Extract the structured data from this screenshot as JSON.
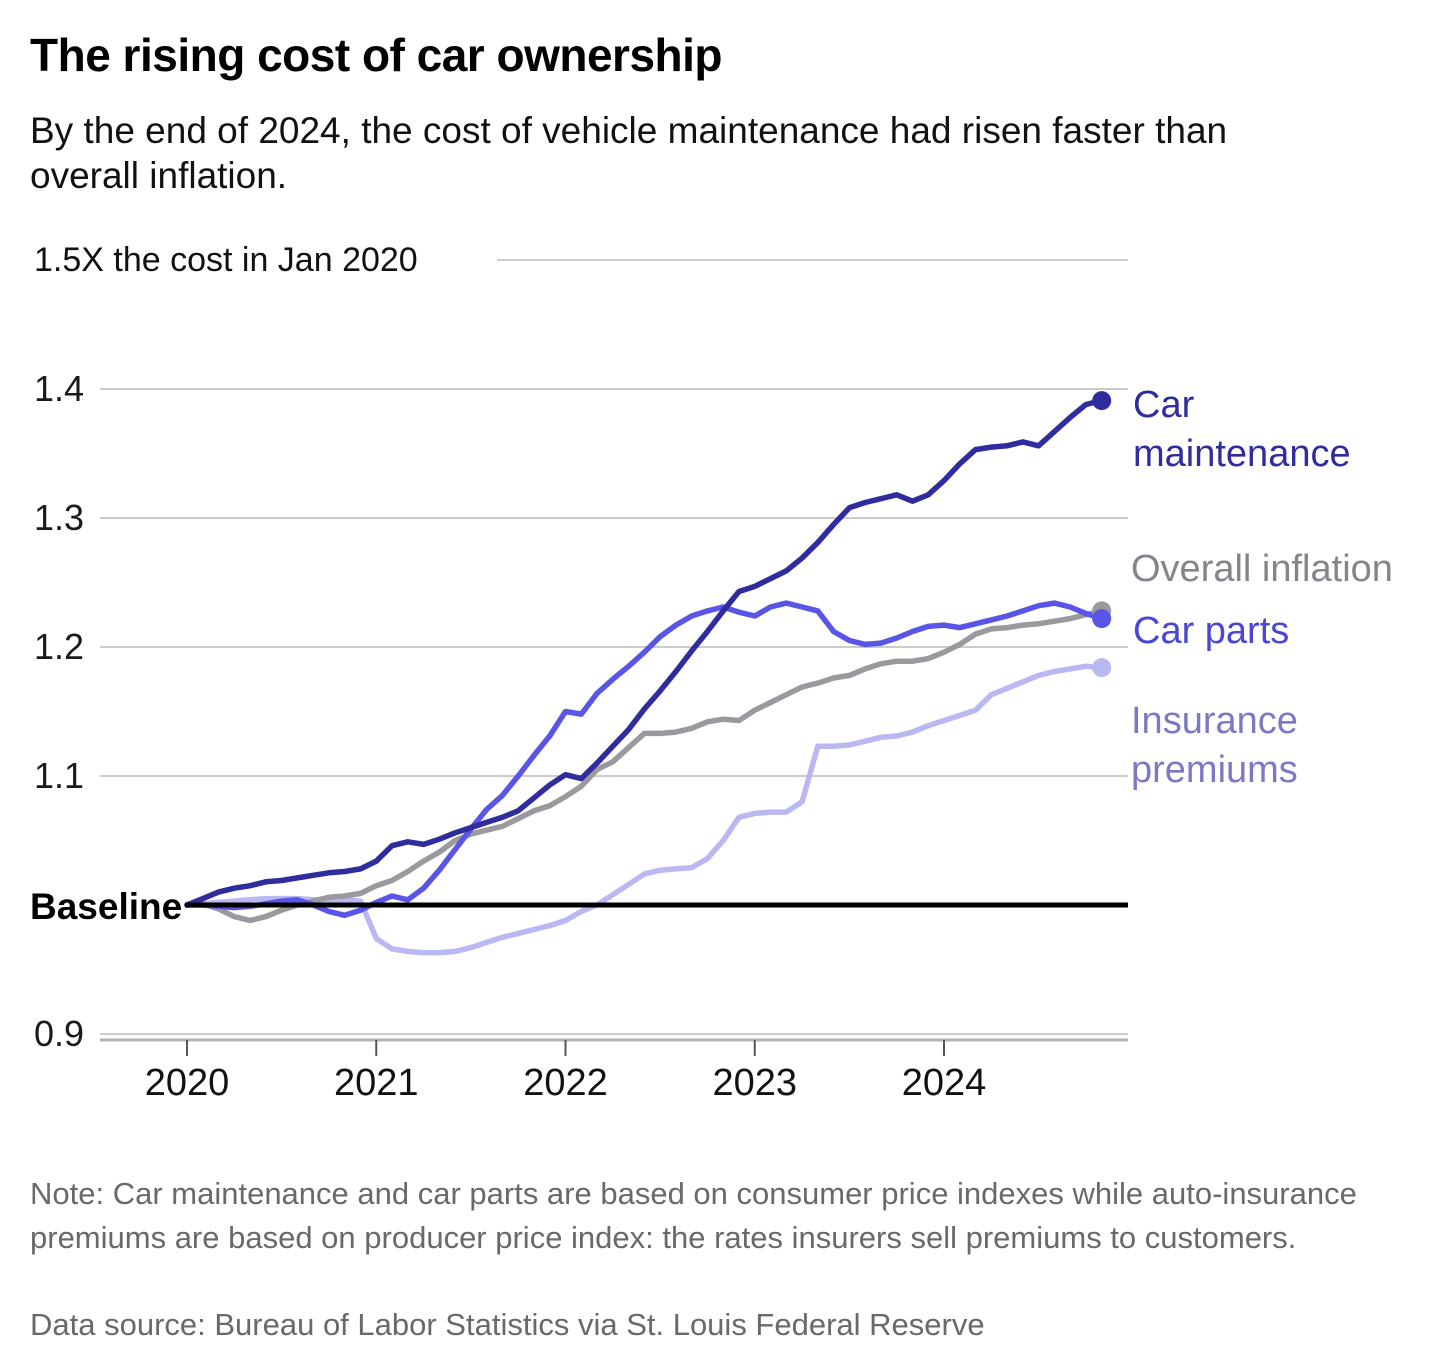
{
  "header": {
    "title": "The rising cost of car ownership",
    "subtitle": "By the end of 2024, the cost of vehicle maintenance had risen faster than overall inflation."
  },
  "footer": {
    "note": "Note: Car maintenance and car parts are based on consumer price indexes while auto-insurance premiums are based on producer price index: the rates insurers sell premiums to customers.",
    "source": "Data source: Bureau of Labor Statistics via St. Louis Federal Reserve"
  },
  "chart_data": {
    "type": "line",
    "title": "The rising cost of car ownership",
    "y_axis_top_label": "1.5X the cost in Jan 2020",
    "baseline_label": "Baseline",
    "baseline_value": 1.0,
    "ylim": [
      0.88,
      1.52
    ],
    "y_ticks": [
      1.5,
      1.4,
      1.3,
      1.2,
      1.1,
      1.0,
      0.9
    ],
    "y_tick_labels": [
      "1.4",
      "1.3",
      "1.2",
      "1.1",
      "0.9"
    ],
    "x_ticks": [
      "2020",
      "2021",
      "2022",
      "2023",
      "2024"
    ],
    "x_start": "2020-01",
    "x_end": "2024-11",
    "frequency": "monthly",
    "grid": true,
    "legend_position": "right-of-line-ends",
    "colors": {
      "grid": "#cbcbcb",
      "axis": "#b3b3b3",
      "tick": "#555555",
      "baseline": "#000000"
    },
    "series": [
      {
        "name": "Insurance premiums",
        "line_color": "#b9b8f2",
        "label_color": "#7b79c4",
        "values": [
          1.0,
          1.001,
          1.002,
          1.003,
          1.004,
          1.005,
          1.005,
          1.005,
          1.004,
          1.004,
          1.004,
          1.003,
          0.974,
          0.966,
          0.964,
          0.963,
          0.963,
          0.964,
          0.967,
          0.971,
          0.975,
          0.978,
          0.981,
          0.984,
          0.988,
          0.995,
          1.0,
          1.008,
          1.016,
          1.024,
          1.027,
          1.028,
          1.029,
          1.036,
          1.05,
          1.068,
          1.071,
          1.072,
          1.072,
          1.08,
          1.123,
          1.123,
          1.124,
          1.127,
          1.13,
          1.131,
          1.134,
          1.139,
          1.143,
          1.147,
          1.151,
          1.163,
          1.168,
          1.173,
          1.178,
          1.181,
          1.183,
          1.185,
          1.184
        ]
      },
      {
        "name": "Overall inflation",
        "line_color": "#9a999e",
        "label_color": "#85848a",
        "values": [
          1.0,
          1.001,
          0.997,
          0.991,
          0.988,
          0.991,
          0.996,
          1.0,
          1.003,
          1.006,
          1.007,
          1.009,
          1.015,
          1.019,
          1.026,
          1.034,
          1.041,
          1.05,
          1.055,
          1.058,
          1.061,
          1.067,
          1.073,
          1.077,
          1.084,
          1.092,
          1.105,
          1.111,
          1.122,
          1.133,
          1.133,
          1.134,
          1.137,
          1.142,
          1.144,
          1.143,
          1.151,
          1.157,
          1.163,
          1.169,
          1.172,
          1.176,
          1.178,
          1.183,
          1.187,
          1.189,
          1.189,
          1.191,
          1.196,
          1.202,
          1.21,
          1.214,
          1.215,
          1.217,
          1.218,
          1.22,
          1.222,
          1.225,
          1.228
        ]
      },
      {
        "name": "Car parts",
        "line_color": "#5955e6",
        "label_color": "#4a47d6",
        "values": [
          1.0,
          1.0,
          0.999,
          0.998,
          0.999,
          1.001,
          1.003,
          1.004,
          1.0,
          0.995,
          0.992,
          0.996,
          1.002,
          1.007,
          1.004,
          1.013,
          1.027,
          1.043,
          1.059,
          1.074,
          1.085,
          1.1,
          1.116,
          1.131,
          1.15,
          1.148,
          1.164,
          1.175,
          1.185,
          1.196,
          1.208,
          1.217,
          1.224,
          1.228,
          1.231,
          1.227,
          1.224,
          1.231,
          1.234,
          1.231,
          1.228,
          1.212,
          1.205,
          1.202,
          1.203,
          1.207,
          1.212,
          1.216,
          1.217,
          1.215,
          1.218,
          1.221,
          1.224,
          1.228,
          1.232,
          1.234,
          1.231,
          1.226,
          1.222
        ]
      },
      {
        "name": "Car maintenance",
        "line_color": "#2f2c9e",
        "label_color": "#2f2c9e",
        "values": [
          1.0,
          1.005,
          1.01,
          1.013,
          1.015,
          1.018,
          1.019,
          1.021,
          1.023,
          1.025,
          1.026,
          1.028,
          1.034,
          1.046,
          1.049,
          1.047,
          1.051,
          1.056,
          1.06,
          1.064,
          1.068,
          1.073,
          1.083,
          1.093,
          1.101,
          1.098,
          1.11,
          1.123,
          1.136,
          1.152,
          1.166,
          1.181,
          1.197,
          1.212,
          1.228,
          1.243,
          1.247,
          1.253,
          1.259,
          1.269,
          1.281,
          1.295,
          1.308,
          1.312,
          1.315,
          1.318,
          1.313,
          1.318,
          1.329,
          1.342,
          1.353,
          1.355,
          1.356,
          1.359,
          1.356,
          1.367,
          1.378,
          1.388,
          1.391
        ]
      }
    ]
  }
}
